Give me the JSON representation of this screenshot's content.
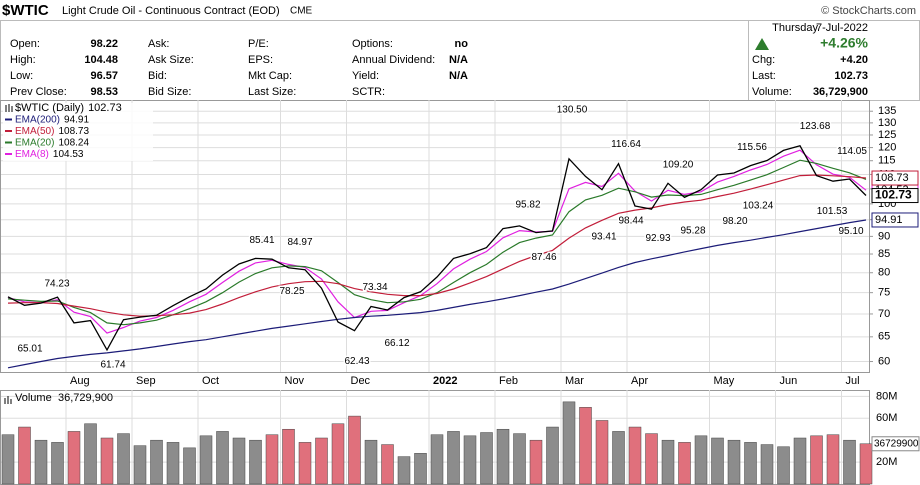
{
  "header": {
    "symbol": "$WTIC",
    "name": "Light Crude Oil - Continuous Contract (EOD)",
    "exchange": "CME",
    "credit": "© StockCharts.com"
  },
  "quote": {
    "columns": [
      [
        {
          "label": "Open:",
          "value": "98.22"
        },
        {
          "label": "High:",
          "value": "104.48"
        },
        {
          "label": "Low:",
          "value": "96.57"
        },
        {
          "label": "Prev Close:",
          "value": "98.53"
        }
      ],
      [
        {
          "label": "Ask:"
        },
        {
          "label": "Ask Size:"
        },
        {
          "label": "Bid:"
        },
        {
          "label": "Bid Size:"
        }
      ],
      [
        {
          "label": "P/E:"
        },
        {
          "label": "EPS:"
        },
        {
          "label": "Mkt Cap:"
        },
        {
          "label": "Last Size:"
        }
      ],
      [
        {
          "label": "Options:",
          "value": "no"
        },
        {
          "label": "Annual Dividend:",
          "value": "N/A"
        },
        {
          "label": "Yield:",
          "value": "N/A"
        },
        {
          "label": "SCTR:"
        }
      ]
    ],
    "day": "Thursday",
    "date": "7-Jul-2022",
    "change_pct": "+4.26%",
    "summary": [
      {
        "label": "Chg:",
        "value": "+4.20"
      },
      {
        "label": "Last:",
        "value": "102.73"
      },
      {
        "label": "Volume:",
        "value": "36,729,900"
      }
    ]
  },
  "chart_data": [
    {
      "type": "line",
      "log_scale": true,
      "grid": true,
      "categories": [
        null,
        null,
        null,
        null,
        "Aug",
        null,
        null,
        null,
        "Sep",
        null,
        null,
        null,
        "Oct",
        null,
        null,
        null,
        null,
        "Nov",
        null,
        null,
        null,
        "Dec",
        null,
        null,
        null,
        null,
        "2022",
        null,
        null,
        null,
        "Feb",
        null,
        null,
        null,
        "Mar",
        null,
        null,
        null,
        "Apr",
        null,
        null,
        null,
        null,
        "May",
        null,
        null,
        null,
        "Jun",
        null,
        null,
        null,
        "Jul",
        null
      ],
      "ylim": [
        58,
        140
      ],
      "yticks": [
        60,
        65,
        70,
        75,
        80,
        85,
        90,
        95,
        100,
        105,
        110,
        115,
        120,
        125,
        130,
        135
      ],
      "series": [
        {
          "name": "$WTIC (Daily)",
          "color": "#000000",
          "values": [
            74,
            72,
            72.5,
            73.9,
            68,
            68.5,
            62.3,
            68.7,
            69.3,
            69.7,
            71.9,
            74,
            75.9,
            79.4,
            82.3,
            83.8,
            83.6,
            81.3,
            80.8,
            76.1,
            68.2,
            66.3,
            71.7,
            70.9,
            73.8,
            75.2,
            78.9,
            83.8,
            85.1,
            86.8,
            92.3,
            93.1,
            91.1,
            91.6,
            115.7,
            109.3,
            104.7,
            113.9,
            99.3,
            98.3,
            106.9,
            102.1,
            104.7,
            109.8,
            110.5,
            113.2,
            115.1,
            118.9,
            120.7,
            109.6,
            107.6,
            108.4,
            102.73
          ]
        },
        {
          "name": "EMA(200)",
          "color": "#1c1c78",
          "values": [
            58.8,
            59.4,
            60.0,
            60.6,
            61.0,
            61.4,
            61.7,
            62.1,
            62.5,
            63.0,
            63.5,
            64.0,
            64.4,
            65.0,
            65.6,
            66.2,
            66.8,
            67.3,
            67.8,
            68.3,
            68.8,
            69.2,
            69.5,
            69.7,
            70.0,
            70.3,
            70.8,
            71.5,
            72.2,
            72.8,
            73.5,
            74.3,
            75.1,
            75.9,
            77.1,
            78.5,
            79.9,
            81.4,
            82.7,
            83.7,
            84.6,
            85.6,
            86.5,
            87.4,
            88.2,
            88.9,
            89.7,
            90.5,
            91.4,
            92.3,
            93.2,
            94.1,
            94.91
          ]
        },
        {
          "name": "EMA(50)",
          "color": "#c21e3a",
          "values": [
            72.5,
            72.6,
            72.6,
            72.4,
            71.8,
            71.2,
            70.4,
            69.8,
            69.5,
            69.6,
            69.8,
            70.2,
            71.0,
            72.3,
            73.8,
            75.2,
            76.4,
            77.2,
            77.7,
            77.8,
            77.2,
            76.0,
            75.2,
            74.6,
            74.3,
            74.3,
            74.8,
            75.9,
            77.4,
            79.0,
            81.0,
            83.0,
            84.6,
            86.0,
            89.5,
            92.5,
            94.8,
            97.0,
            98.0,
            98.7,
            99.8,
            100.6,
            101.2,
            102.4,
            103.5,
            104.9,
            106.4,
            108.0,
            109.6,
            109.8,
            109.5,
            109.2,
            108.73
          ]
        },
        {
          "name": "EMA(20)",
          "color": "#2a7a2a",
          "values": [
            73.5,
            73.2,
            72.9,
            73.0,
            71.5,
            70.3,
            68.0,
            67.6,
            68.0,
            68.6,
            69.8,
            71.2,
            72.8,
            75.0,
            77.6,
            79.8,
            81.3,
            81.8,
            81.6,
            80.5,
            77.5,
            74.5,
            73.3,
            72.6,
            72.8,
            73.4,
            75.0,
            77.5,
            80.0,
            82.2,
            85.5,
            88.2,
            89.5,
            90.4,
            97.5,
            101.3,
            102.8,
            105.2,
            104.0,
            102.2,
            102.9,
            102.7,
            103.1,
            104.7,
            106.2,
            108.0,
            109.9,
            112.5,
            115.2,
            114.0,
            112.2,
            110.6,
            108.24
          ]
        },
        {
          "name": "EMA(8)",
          "color": "#e020e0",
          "values": [
            73.8,
            72.8,
            72.6,
            73.3,
            70.4,
            69.4,
            65.8,
            67.0,
            68.4,
            69.2,
            70.8,
            72.8,
            74.6,
            77.5,
            80.4,
            82.6,
            83.3,
            82.2,
            81.4,
            78.4,
            72.8,
            69.2,
            70.6,
            70.8,
            72.6,
            74.3,
            77.2,
            81.0,
            83.6,
            85.7,
            89.6,
            91.7,
            91.3,
            91.5,
            105.0,
            107.2,
            105.8,
            110.4,
            104.2,
            100.9,
            104.5,
            103.1,
            104.0,
            107.3,
            109.3,
            111.6,
            113.6,
            116.7,
            119.0,
            113.5,
            110.1,
            109.0,
            104.53
          ]
        }
      ],
      "annotations": [
        74.23,
        65.01,
        61.74,
        85.41,
        84.97,
        78.25,
        73.34,
        62.43,
        66.12,
        95.82,
        87.46,
        {
          "value": 130.5,
          "label": "130.50"
        },
        116.64,
        93.41,
        98.44,
        {
          "value": 109.2,
          "label": "109.20"
        },
        92.93,
        95.28,
        {
          "value": 98.2,
          "label": "98.20"
        },
        115.56,
        103.24,
        123.68,
        114.05,
        101.53,
        {
          "value": 95.1,
          "label": "95.10"
        }
      ]
    },
    {
      "type": "bar",
      "up_color": "#8c8c8c",
      "down_color": "#e0707c",
      "series": [
        {
          "name": "Volume",
          "values": [
            45000000,
            52000000,
            40000000,
            38000000,
            48000000,
            55000000,
            42000000,
            46000000,
            35000000,
            40000000,
            38000000,
            33000000,
            44000000,
            48000000,
            42000000,
            40000000,
            45000000,
            50000000,
            38000000,
            42000000,
            55000000,
            62000000,
            40000000,
            36000000,
            25000000,
            28000000,
            45000000,
            48000000,
            44000000,
            47000000,
            50000000,
            46000000,
            40000000,
            52000000,
            75000000,
            70000000,
            58000000,
            48000000,
            52000000,
            46000000,
            40000000,
            38000000,
            44000000,
            42000000,
            40000000,
            38000000,
            36000000,
            34000000,
            42000000,
            44000000,
            45000000,
            40000000,
            36729900
          ]
        }
      ],
      "ylim": [
        0,
        84000000
      ],
      "yticks": [
        {
          "value": 20000000,
          "label": "20M"
        },
        {
          "value": 60000000,
          "label": "60M"
        },
        {
          "value": 80000000,
          "label": "80M"
        }
      ]
    }
  ]
}
